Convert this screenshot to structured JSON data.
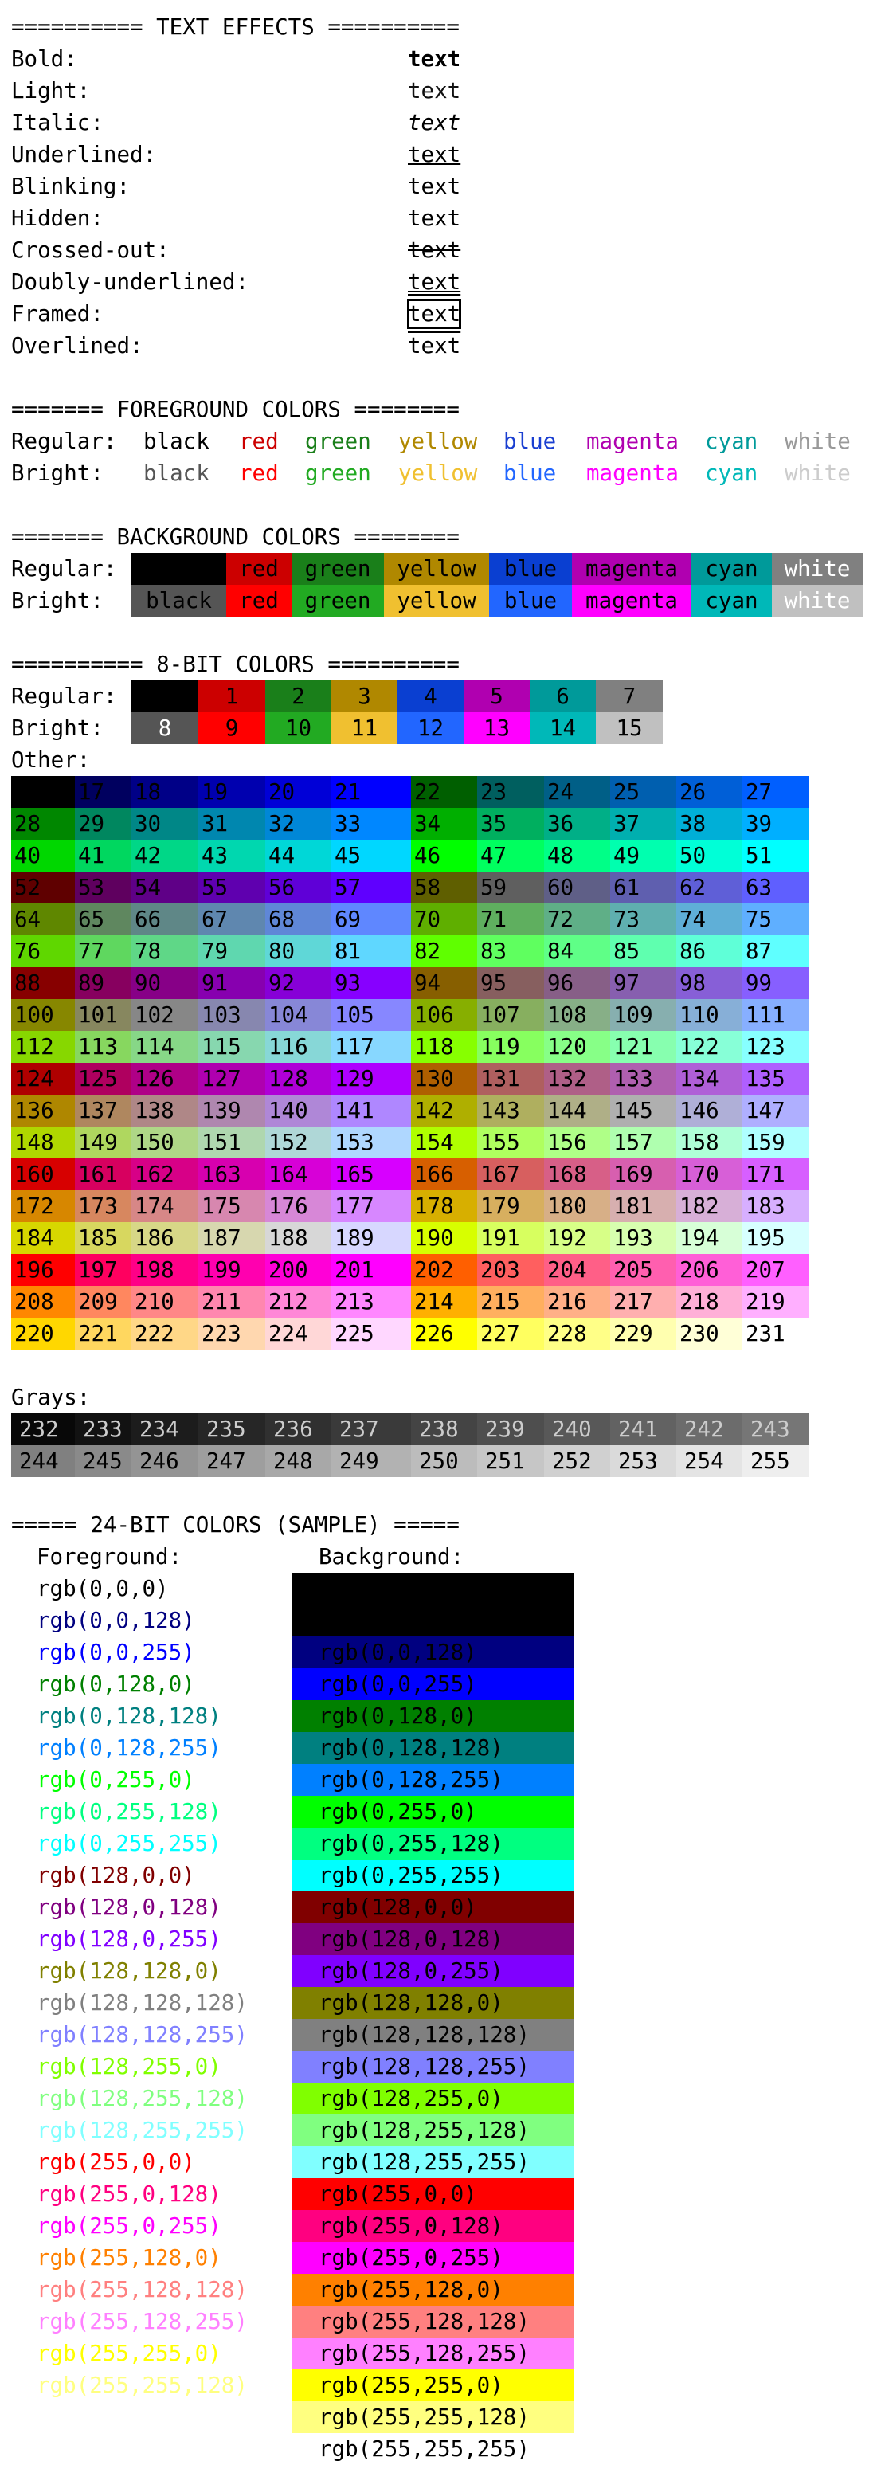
{
  "sections": {
    "text_effects": "========== TEXT EFFECTS ==========",
    "foreground": "======= FOREGROUND COLORS ========",
    "background": "======= BACKGROUND COLORS ========",
    "bit8": "========== 8-BIT COLORS ==========",
    "bit24": "===== 24-BIT COLORS (SAMPLE) ====="
  },
  "text_effects": {
    "sample": "text",
    "items": [
      {
        "label": "Bold:",
        "style": "bold"
      },
      {
        "label": "Light:",
        "style": "light"
      },
      {
        "label": "Italic:",
        "style": "italic"
      },
      {
        "label": "Underlined:",
        "style": "underline"
      },
      {
        "label": "Blinking:",
        "style": "blink"
      },
      {
        "label": "Hidden:",
        "style": "hidden"
      },
      {
        "label": "Crossed-out:",
        "style": "strike"
      },
      {
        "label": "Doubly-underlined:",
        "style": "double-underline"
      },
      {
        "label": "Framed:",
        "style": "framed"
      },
      {
        "label": "Overlined:",
        "style": "overline"
      }
    ]
  },
  "color_names": [
    "black",
    "red",
    "green",
    "yellow",
    "blue",
    "magenta",
    "cyan",
    "white"
  ],
  "row_labels": {
    "regular": "Regular:",
    "bright": "Bright:",
    "other": "Other:",
    "grays": "Grays:"
  },
  "palette_regular": [
    "#000000",
    "#cc0000",
    "#1a7f1a",
    "#b08800",
    "#0a3fd1",
    "#b000b0",
    "#009a9a",
    "#808080"
  ],
  "palette_bright": [
    "#555555",
    "#ff0000",
    "#22aa22",
    "#f0c030",
    "#2266ff",
    "#ff00ff",
    "#00b8b8",
    "#c0c0c0"
  ],
  "fg_regular": [
    "#000000",
    "#cc0000",
    "#1a7f1a",
    "#b08800",
    "#1a3fd1",
    "#b000b0",
    "#009a9a",
    "#999999"
  ],
  "fg_bright": [
    "#555555",
    "#ff0000",
    "#22aa22",
    "#f0c030",
    "#2266ff",
    "#ff00ff",
    "#00b8b8",
    "#cccccc"
  ],
  "bit24": {
    "foreground_label": "Foreground:",
    "background_label": "Background:",
    "samples": [
      "rgb(0,0,0)",
      "rgb(0,0,128)",
      "rgb(0,0,255)",
      "rgb(0,128,0)",
      "rgb(0,128,128)",
      "rgb(0,128,255)",
      "rgb(0,255,0)",
      "rgb(0,255,128)",
      "rgb(0,255,255)",
      "rgb(128,0,0)",
      "rgb(128,0,128)",
      "rgb(128,0,255)",
      "rgb(128,128,0)",
      "rgb(128,128,128)",
      "rgb(128,128,255)",
      "rgb(128,255,0)",
      "rgb(128,255,128)",
      "rgb(128,255,255)",
      "rgb(255,0,0)",
      "rgb(255,0,128)",
      "rgb(255,0,255)",
      "rgb(255,128,0)",
      "rgb(255,128,128)",
      "rgb(255,128,255)",
      "rgb(255,255,0)",
      "rgb(255,255,128)",
      "rgb(255,255,255)"
    ]
  }
}
